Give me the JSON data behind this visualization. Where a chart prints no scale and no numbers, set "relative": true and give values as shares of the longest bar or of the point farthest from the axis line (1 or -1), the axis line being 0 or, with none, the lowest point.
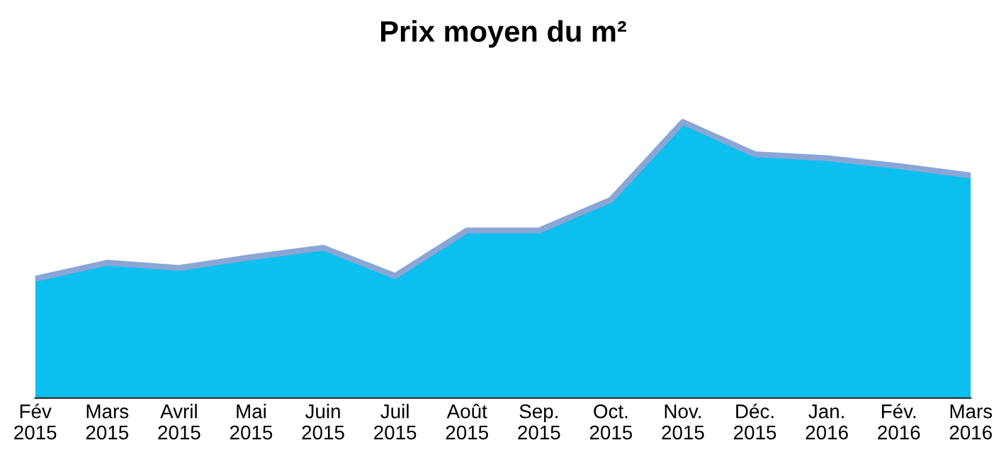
{
  "chart_data": {
    "type": "area",
    "title": "Prix moyen du m²",
    "relative": true,
    "categories": [
      "Fév\n2015",
      "Mars\n2015",
      "Avril\n2015",
      "Mai\n2015",
      "Juin\n2015",
      "Juil\n2015",
      "Août\n2015",
      "Sep.\n2015",
      "Oct.\n2015",
      "Nov.\n2015",
      "Déc.\n2015",
      "Jan.\n2016",
      "Fév.\n2016",
      "Mars\n2016"
    ],
    "series": [
      {
        "color": "#0bbfee",
        "values": [
          0.432,
          0.49,
          0.471,
          0.51,
          0.544,
          0.442,
          0.607,
          0.607,
          0.718,
          1,
          0.883,
          0.869,
          0.84,
          0.806
        ]
      }
    ]
  }
}
